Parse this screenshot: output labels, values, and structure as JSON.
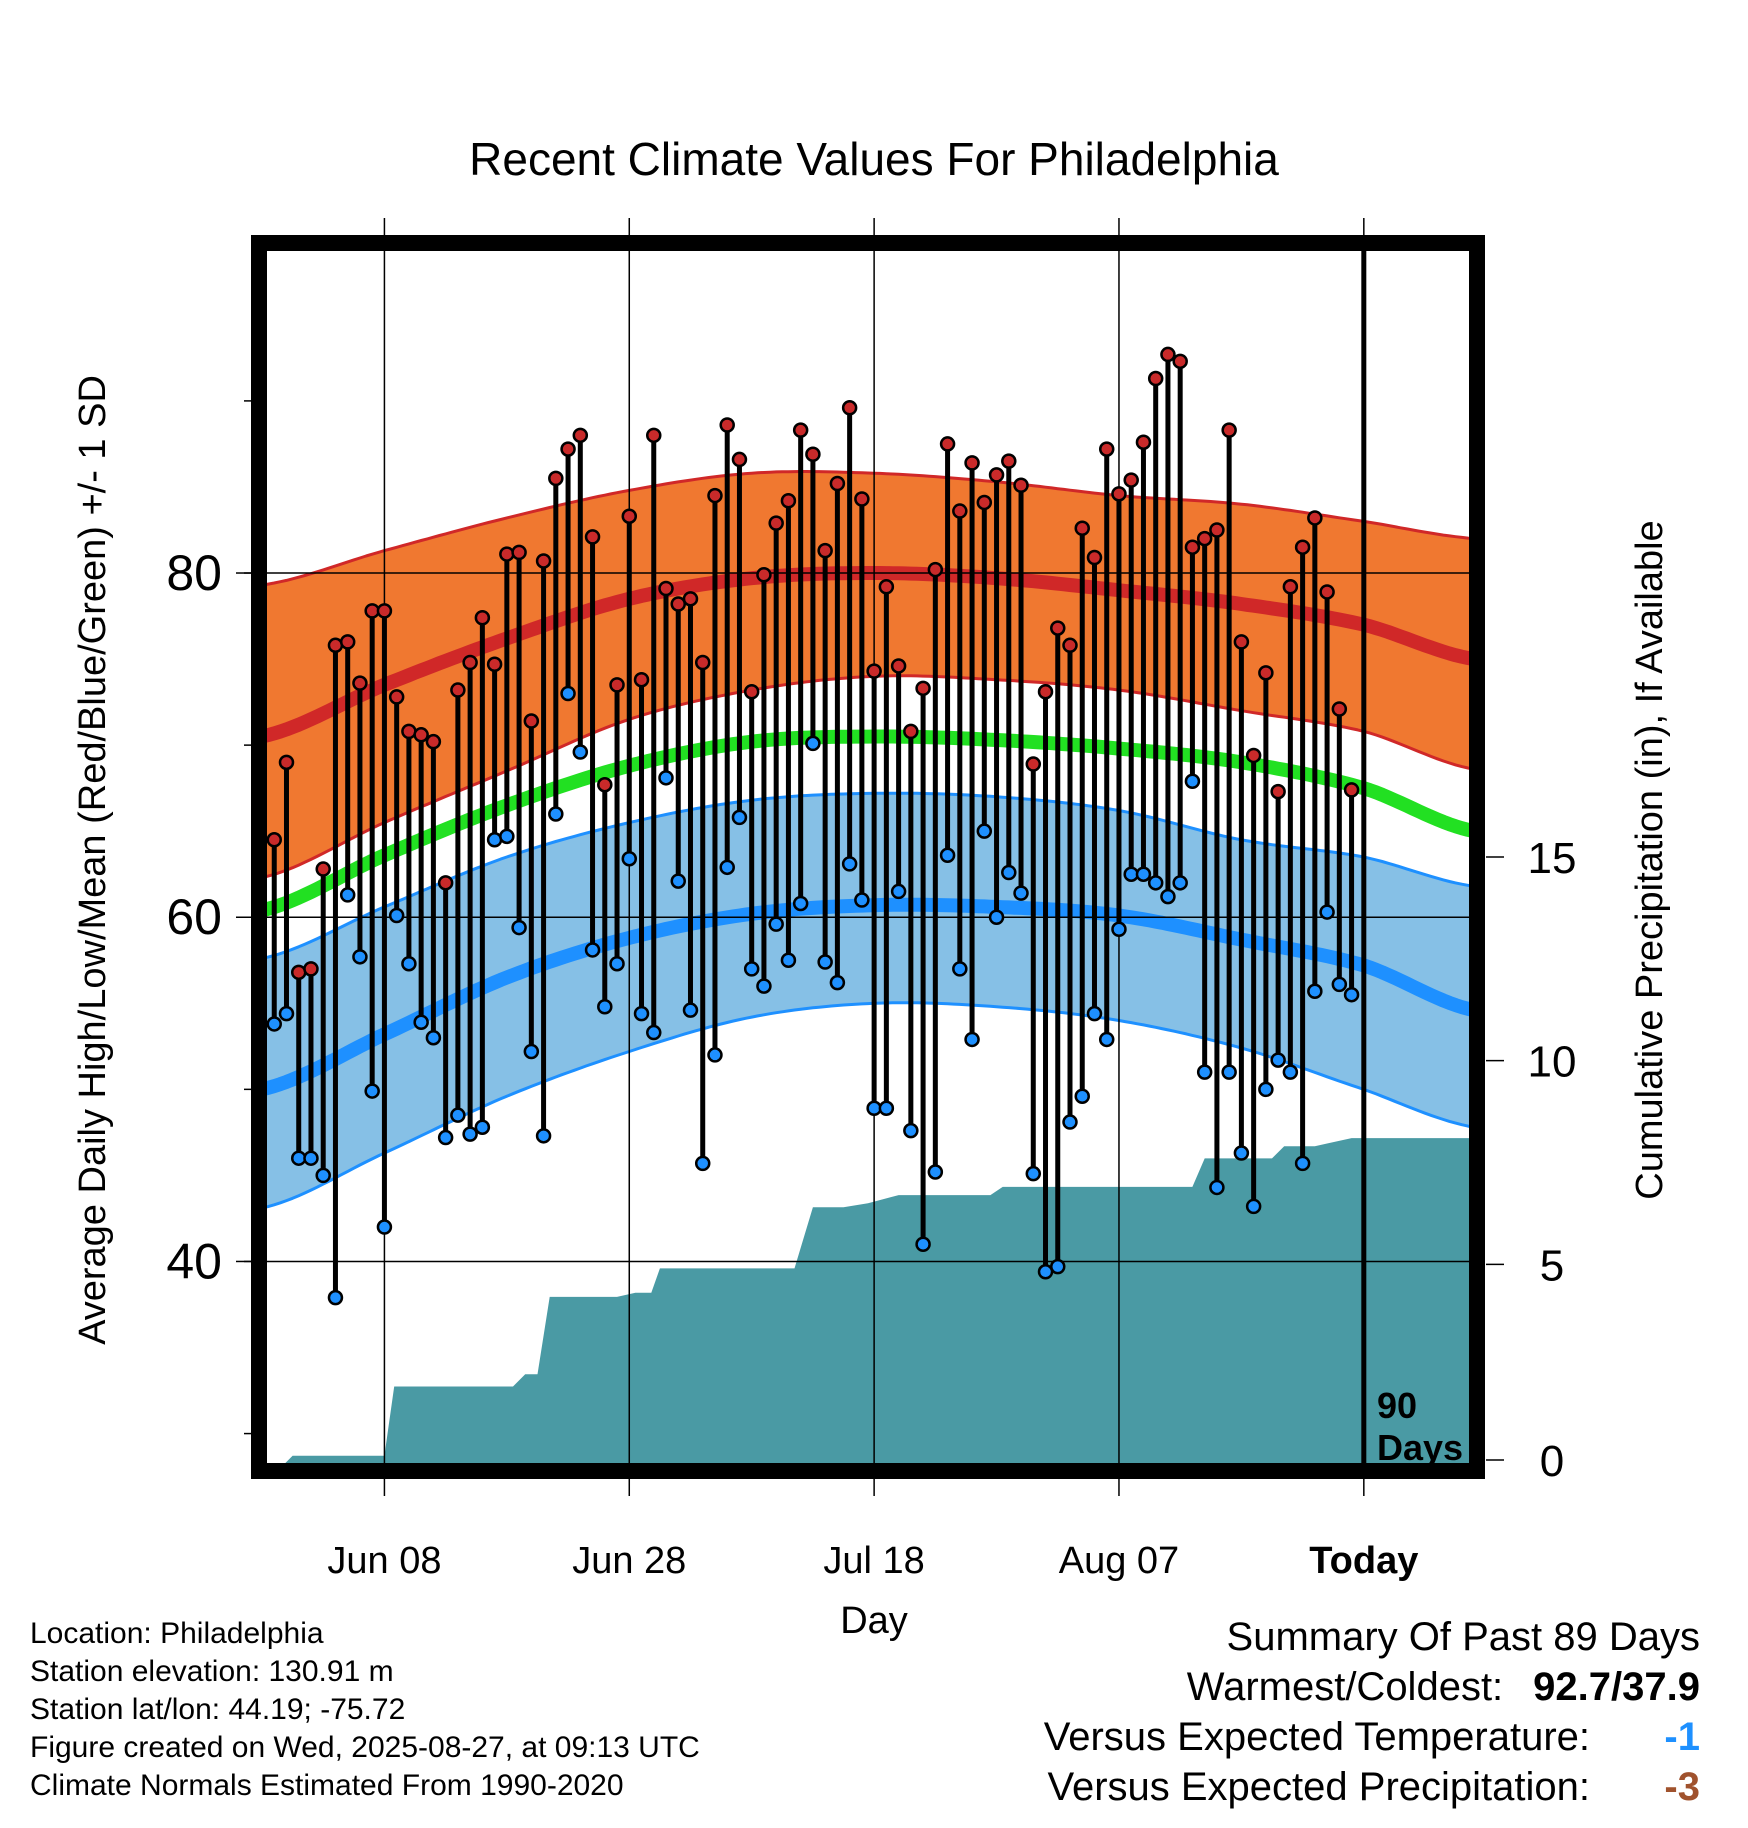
{
  "chart_data": {
    "type": "line",
    "title": "Recent Climate Values For Philadelphia",
    "xlabel": "Day",
    "ylabel": "Average Daily High/Low/Mean (Red/Blue/Green) +/- 1 SD",
    "y2label": "Cumulative Precipitation (in), If Available",
    "x_ticks": [
      {
        "day": 10,
        "label": "Jun 08"
      },
      {
        "day": 30,
        "label": "Jun 28"
      },
      {
        "day": 50,
        "label": "Jul 18"
      },
      {
        "day": 70,
        "label": "Aug 07"
      },
      {
        "day": 90,
        "label": "Today"
      }
    ],
    "ylim": [
      28,
      99
    ],
    "y_ticks": [
      40,
      60,
      80
    ],
    "y2lim": [
      0,
      30
    ],
    "y2_ticks": [
      0,
      5,
      10,
      15
    ],
    "xlim": [
      0,
      99
    ],
    "today_marker": {
      "day": 90,
      "label_line1": "90",
      "label_line2": "Days"
    },
    "normals": {
      "days": [
        0,
        10,
        20,
        30,
        40,
        50,
        60,
        70,
        80,
        90,
        99
      ],
      "high_mean": [
        70.5,
        73.5,
        76.2,
        78.5,
        79.7,
        80.0,
        79.7,
        79.0,
        78.2,
        77.0,
        75.0
      ],
      "high_upper": [
        79.3,
        81.3,
        83.2,
        84.8,
        85.8,
        85.8,
        85.3,
        84.5,
        84.0,
        83.0,
        82.0
      ],
      "high_lower": [
        62.3,
        65.5,
        68.5,
        71.5,
        73.2,
        74.0,
        73.8,
        73.2,
        72.0,
        70.8,
        68.6
      ],
      "mean": [
        60.4,
        63.6,
        66.5,
        68.8,
        70.2,
        70.5,
        70.3,
        69.8,
        69.0,
        67.5,
        65.0
      ],
      "low_mean": [
        50.0,
        53.2,
        56.5,
        58.8,
        60.2,
        60.7,
        60.6,
        60.1,
        58.7,
        57.2,
        54.6
      ],
      "low_upper": [
        57.6,
        60.6,
        63.5,
        65.5,
        66.8,
        67.2,
        67.0,
        66.2,
        64.5,
        63.5,
        61.8
      ],
      "low_lower": [
        43.1,
        46.3,
        49.6,
        52.2,
        54.2,
        55.0,
        54.8,
        54.0,
        52.4,
        50.0,
        47.8
      ]
    },
    "series": [
      {
        "name": "Daily High",
        "color": "#c92a2a",
        "values": [
          64.5,
          69.0,
          56.8,
          57.0,
          62.8,
          75.8,
          76.0,
          73.6,
          77.8,
          77.8,
          72.8,
          70.8,
          70.6,
          70.2,
          62.0,
          73.2,
          74.8,
          77.4,
          74.7,
          81.1,
          81.2,
          71.4,
          80.7,
          85.5,
          87.2,
          88.0,
          82.1,
          67.7,
          73.5,
          83.3,
          73.8,
          88.0,
          79.1,
          78.2,
          78.5,
          74.8,
          84.5,
          88.6,
          86.6,
          73.1,
          79.9,
          82.9,
          84.2,
          88.3,
          86.9,
          81.3,
          85.2,
          89.6,
          84.3,
          74.3,
          79.2,
          74.6,
          70.8,
          73.3,
          80.2,
          87.5,
          83.6,
          86.4,
          84.1,
          85.7,
          86.5,
          85.1,
          68.9,
          73.1,
          76.8,
          75.8,
          82.6,
          80.9,
          87.2,
          84.6,
          85.4,
          87.6,
          91.3,
          92.7,
          92.3,
          81.5,
          82.0,
          82.5,
          88.3,
          76.0,
          69.4,
          74.2,
          67.3,
          79.2,
          81.5,
          83.2,
          78.9,
          72.1,
          67.4
        ]
      },
      {
        "name": "Daily Low",
        "color": "#1e90ff",
        "values": [
          53.8,
          54.4,
          46.0,
          46.0,
          45.0,
          37.9,
          61.3,
          57.7,
          49.9,
          42.0,
          60.1,
          57.3,
          53.9,
          53.0,
          47.2,
          48.5,
          47.4,
          47.8,
          64.5,
          64.7,
          59.4,
          52.2,
          47.3,
          66.0,
          73.0,
          69.6,
          58.1,
          54.8,
          57.3,
          63.4,
          54.4,
          53.3,
          68.1,
          62.1,
          54.6,
          45.7,
          52.0,
          62.9,
          65.8,
          57.0,
          56.0,
          59.6,
          57.5,
          60.8,
          70.1,
          57.4,
          56.2,
          63.1,
          61.0,
          48.9,
          48.9,
          61.5,
          47.6,
          41.0,
          45.2,
          63.6,
          57.0,
          52.9,
          65.0,
          60.0,
          62.6,
          61.4,
          45.1,
          39.4,
          39.7,
          48.1,
          49.6,
          54.4,
          52.9,
          59.3,
          62.5,
          62.5,
          62.0,
          61.2,
          62.0,
          67.9,
          51.0,
          44.3,
          51.0,
          46.3,
          43.2,
          50.0,
          51.7,
          51.0,
          45.7,
          55.7,
          60.3,
          56.1,
          55.5
        ]
      }
    ],
    "precip_cumulative": {
      "days": [
        0,
        1.5,
        2.5,
        10,
        10.8,
        20.5,
        21.5,
        22.5,
        23.5,
        29,
        30.5,
        31.8,
        32.5,
        43.5,
        45,
        47.5,
        49.5,
        52,
        59.5,
        60.5,
        76,
        77,
        82.5,
        83.5,
        86,
        89,
        99
      ],
      "values": [
        0,
        0,
        0.3,
        0.3,
        2.0,
        2.0,
        2.3,
        2.3,
        4.2,
        4.2,
        4.3,
        4.3,
        4.9,
        4.9,
        6.4,
        6.4,
        6.5,
        6.7,
        6.7,
        6.9,
        6.9,
        7.6,
        7.6,
        7.9,
        7.9,
        8.1,
        8.1
      ]
    }
  },
  "footer": {
    "location": "Location: Philadelphia",
    "elevation": "Station elevation: 130.91 m",
    "latlon": "Station lat/lon: 44.19; -75.72",
    "created": "Figure created on Wed, 2025-08-27, at 09:13 UTC",
    "normals": "Climate Normals Estimated From 1990-2020"
  },
  "summary": {
    "title": "Summary Of Past 89 Days",
    "warm_cold_label": "Warmest/Coldest:",
    "warm_cold_value": "92.7/37.9",
    "temp_label": "Versus Expected Temperature:",
    "temp_value": "-1",
    "precip_label": "Versus Expected Precipitation:",
    "precip_value": "-3"
  },
  "colors": {
    "high_band": "#f07830",
    "high_line": "#d02828",
    "low_band": "#86c0e6",
    "low_line": "#1e90ff",
    "mean_line": "#22e022",
    "precip": "#4a9aa4",
    "frame": "#000000"
  }
}
